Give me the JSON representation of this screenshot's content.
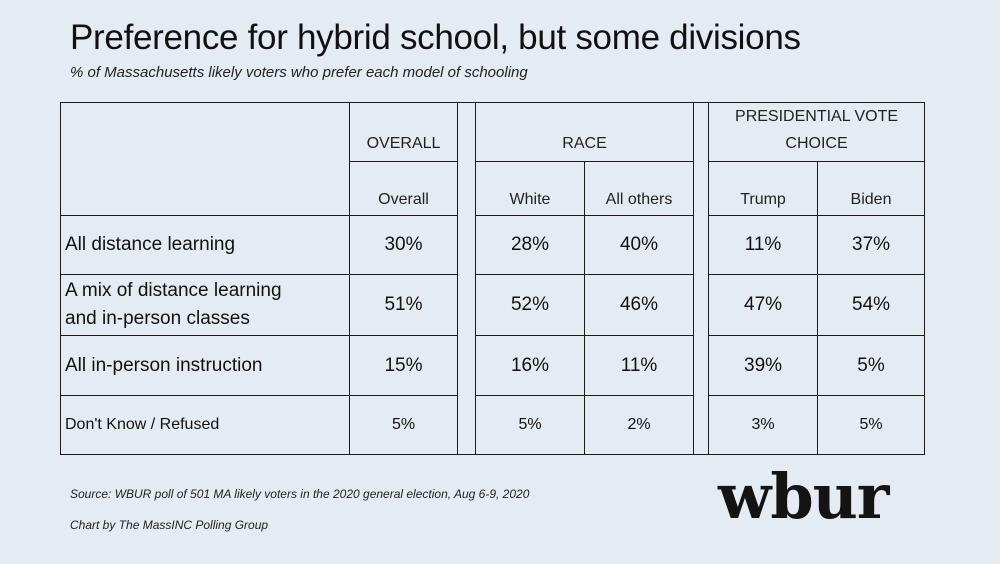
{
  "title": "Preference for hybrid school, but some divisions",
  "subtitle": "% of Massachusetts likely voters who prefer each model of schooling",
  "chart_data": {
    "type": "table",
    "groups": [
      "OVERALL",
      "RACE",
      "PRESIDENTIAL VOTE CHOICE"
    ],
    "group_lines": [
      [
        "OVERALL"
      ],
      [
        "RACE"
      ],
      [
        "PRESIDENTIAL VOTE",
        "CHOICE"
      ]
    ],
    "columns": [
      "Overall",
      "White",
      "All others",
      "Trump",
      "Biden"
    ],
    "rows": [
      {
        "label_lines": [
          "All distance learning"
        ],
        "values": [
          "30%",
          "28%",
          "40%",
          "11%",
          "37%"
        ]
      },
      {
        "label_lines": [
          "A mix of distance learning",
          "and in-person classes"
        ],
        "values": [
          "51%",
          "52%",
          "46%",
          "47%",
          "54%"
        ]
      },
      {
        "label_lines": [
          "All in-person instruction"
        ],
        "values": [
          "15%",
          "16%",
          "11%",
          "39%",
          "5%"
        ]
      },
      {
        "label_lines": [
          "Don't Know / Refused"
        ],
        "values": [
          "5%",
          "5%",
          "2%",
          "3%",
          "5%"
        ]
      }
    ]
  },
  "source": "Source: WBUR poll of 501 MA likely voters in the 2020 general election, Aug 6-9, 2020",
  "credit": "Chart by The MassINC Polling Group",
  "logo": "wbur"
}
